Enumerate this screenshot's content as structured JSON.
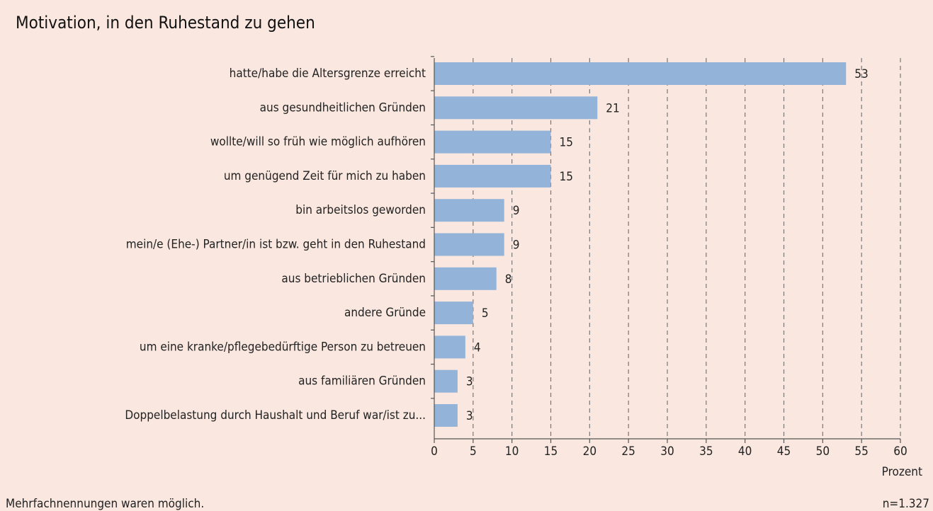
{
  "chart_data": {
    "type": "bar",
    "orientation": "horizontal",
    "title": "Motivation, in den Ruhestand zu gehen",
    "categories": [
      "hatte/habe die Altersgrenze erreicht",
      "aus gesundheitlichen Gründen",
      "wollte/will so früh wie möglich aufhören",
      "um genügend Zeit für mich zu haben",
      "bin arbeitslos geworden",
      "mein/e (Ehe-) Partner/in ist bzw. geht in den Ruhestand",
      "aus betrieblichen Gründen",
      "andere Gründe",
      "um eine kranke/pflegebedürftige Person zu betreuen",
      "aus familiären Gründen",
      "Doppelbelastung durch Haushalt und Beruf war/ist zu..."
    ],
    "values": [
      53,
      21,
      15,
      15,
      9,
      9,
      8,
      5,
      4,
      3,
      3
    ],
    "color": "#93b3d9",
    "xlim": [
      0,
      60
    ],
    "xticks": [
      0,
      5,
      10,
      15,
      20,
      25,
      30,
      35,
      40,
      45,
      50,
      55,
      60
    ],
    "x_label": "Prozent",
    "grid": true,
    "note": "Mehrfachnennungen waren möglich.",
    "sample": "n=1.327"
  }
}
